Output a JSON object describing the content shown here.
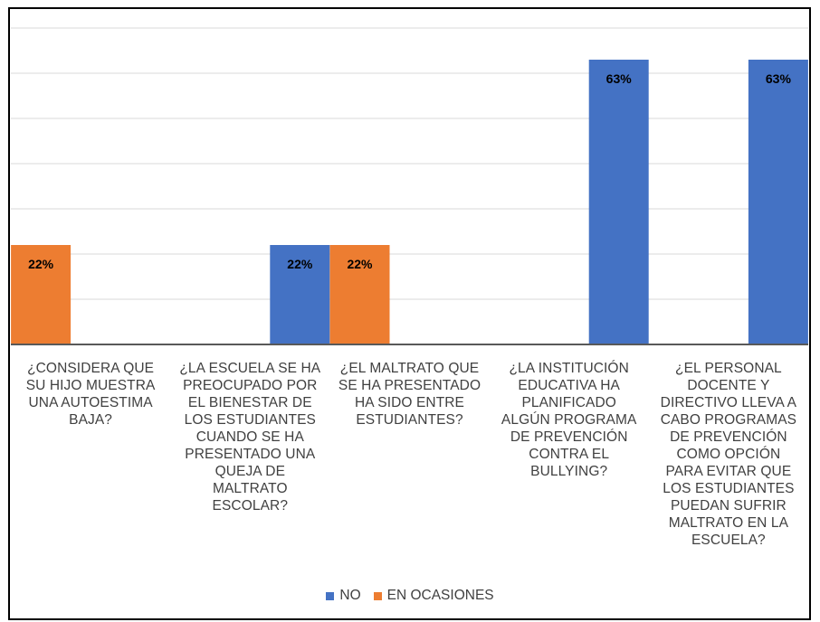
{
  "chart_data": {
    "type": "bar",
    "categories": [
      "¿CONSIDERA QUE SU HIJO MUESTRA UNA AUTOESTIMA BAJA?",
      "¿LA ESCUELA SE HA PREOCUPADO POR EL BIENESTAR DE LOS ESTUDIANTES CUANDO SE HA PRESENTADO UNA QUEJA DE MALTRATO ESCOLAR?",
      "¿EL MALTRATO QUE SE HA PRESENTADO HA SIDO ENTRE ESTUDIANTES?",
      "¿LA INSTITUCIÓN EDUCATIVA HA PLANIFICADO ALGÚN PROGRAMA DE PREVENCIÓN CONTRA EL BULLYING?",
      "¿EL PERSONAL DOCENTE Y DIRECTIVO LLEVA A CABO PROGRAMAS DE PREVENCIÓN COMO OPCIÓN PARA EVITAR QUE LOS ESTUDIANTES PUEDAN SUFRIR MALTRATO EN LA ESCUELA?"
    ],
    "category_lines": [
      [
        "¿CONSIDERA QUE",
        "SU HIJO MUESTRA",
        "UNA AUTOESTIMA",
        "BAJA?"
      ],
      [
        "¿LA ESCUELA SE HA",
        "PREOCUPADO POR",
        "EL BIENESTAR DE",
        "LOS ESTUDIANTES",
        "CUANDO SE HA",
        "PRESENTADO UNA",
        "QUEJA DE",
        "MALTRATO",
        "ESCOLAR?"
      ],
      [
        "¿EL MALTRATO QUE",
        "SE HA PRESENTADO",
        "HA SIDO ENTRE",
        "ESTUDIANTES?"
      ],
      [
        "¿LA INSTITUCIÓN",
        "EDUCATIVA HA",
        "PLANIFICADO",
        "ALGÚN PROGRAMA",
        "DE PREVENCIÓN",
        "CONTRA EL",
        "BULLYING?"
      ],
      [
        "¿EL PERSONAL",
        "DOCENTE Y",
        "DIRECTIVO LLEVA A",
        "CABO PROGRAMAS",
        "DE PREVENCIÓN",
        "COMO OPCIÓN",
        "PARA EVITAR QUE",
        "LOS ESTUDIANTES",
        "PUEDAN SUFRIR",
        "MALTRATO EN LA",
        "ESCUELA?"
      ]
    ],
    "series": [
      {
        "name": "NO",
        "color": "#4472C4",
        "values": [
          null,
          22,
          null,
          63,
          63
        ],
        "labels": [
          null,
          "22%",
          null,
          "63%",
          "63%"
        ]
      },
      {
        "name": "EN OCASIONES",
        "color": "#ED7D31",
        "values": [
          22,
          null,
          22,
          null,
          null
        ],
        "labels": [
          "22%",
          null,
          "22%",
          null,
          null
        ]
      }
    ],
    "ylim": [
      0,
      70
    ],
    "grid": true,
    "legend_position": "bottom",
    "title": "",
    "xlabel": "",
    "ylabel": ""
  }
}
